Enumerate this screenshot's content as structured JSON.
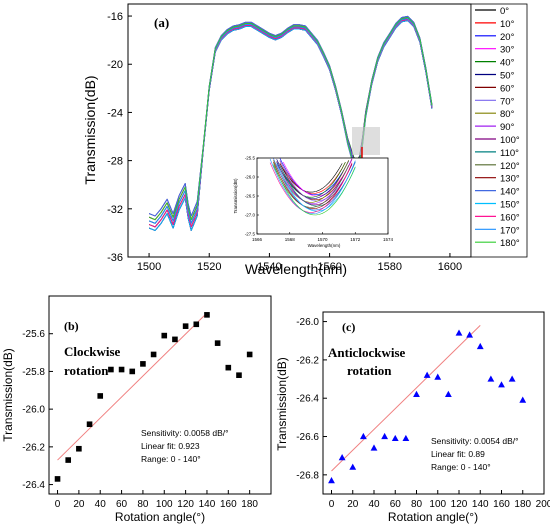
{
  "chart_data": [
    {
      "panel": "(a)",
      "type": "line",
      "xlabel": "Wavelength(nm)",
      "ylabel": "Transmission(dB)",
      "xlim": [
        1493,
        1607
      ],
      "ylim": [
        -36,
        -15
      ],
      "xticks": [
        "1500",
        "1520",
        "1540",
        "1560",
        "1580",
        "1600"
      ],
      "yticks": [
        "-36",
        "-32",
        "-28",
        "-24",
        "-20",
        "-16"
      ],
      "legend": [
        "0°",
        "10°",
        "20°",
        "30°",
        "40°",
        "50°",
        "60°",
        "70°",
        "80°",
        "90°",
        "100°",
        "110°",
        "120°",
        "130°",
        "140°",
        "150°",
        "160°",
        "170°",
        "180°"
      ],
      "legend_position": "right",
      "series_colors": [
        "#000000",
        "#ff0000",
        "#0000ff",
        "#ff00ff",
        "#008000",
        "#000080",
        "#800000",
        "#7b68ee",
        "#808000",
        "#a020f0",
        "#800080",
        "#008080",
        "#556b2f",
        "#8b0000",
        "#4169e1",
        "#00bfff",
        "#ff1493",
        "#1e90ff",
        "#32cd32"
      ],
      "spectrum": {
        "x": [
          1500,
          1502,
          1504,
          1506,
          1508,
          1510,
          1512,
          1513,
          1514,
          1516,
          1518,
          1520,
          1522,
          1524,
          1526,
          1528,
          1530,
          1532,
          1534,
          1536,
          1538,
          1540,
          1542,
          1544,
          1546,
          1548,
          1550,
          1552,
          1554,
          1556,
          1558,
          1560,
          1562,
          1564,
          1566,
          1568,
          1569,
          1570,
          1571,
          1572,
          1574,
          1576,
          1578,
          1580,
          1582,
          1584,
          1586,
          1588,
          1590,
          1592,
          1594
        ],
        "y": [
          -33.0,
          -33.2,
          -32.6,
          -31.8,
          -33.0,
          -31.5,
          -30.5,
          -32.2,
          -33.2,
          -32.0,
          -27.0,
          -22.0,
          -18.8,
          -17.8,
          -17.3,
          -17.0,
          -16.9,
          -16.7,
          -16.7,
          -17.0,
          -17.3,
          -17.6,
          -17.8,
          -17.6,
          -17.2,
          -16.9,
          -16.9,
          -17.0,
          -17.6,
          -18.2,
          -19.2,
          -20.3,
          -22.0,
          -24.0,
          -26.2,
          -27.7,
          -28.0,
          -27.6,
          -26.0,
          -24.0,
          -21.5,
          -19.6,
          -18.4,
          -17.6,
          -16.8,
          -16.3,
          -16.2,
          -16.7,
          -18.0,
          -20.5,
          -23.5
        ]
      },
      "inset": {
        "xlabel": "Wavelength(nm)",
        "ylabel": "Transmission(dB)",
        "xlim": [
          1566,
          1574
        ],
        "ylim": [
          -27.5,
          -25.5
        ],
        "xticks": [
          "1566",
          "1568",
          "1570",
          "1572",
          "1574"
        ],
        "yticks": [
          "-27.5",
          "-27.0",
          "-26.5",
          "-26.0",
          "-25.5"
        ]
      }
    },
    {
      "panel": "(b)",
      "type": "scatter",
      "annotation": "Clockwise rotation",
      "xlabel": "Rotation angle(°)",
      "ylabel": "Transmission(dB)",
      "xlim": [
        -8,
        200
      ],
      "ylim": [
        -26.45,
        -25.4
      ],
      "xticks": [
        "0",
        "20",
        "40",
        "60",
        "80",
        "100",
        "120",
        "140",
        "160",
        "180"
      ],
      "yticks": [
        "-26.4",
        "-26.2",
        "-26.0",
        "-25.8",
        "-25.6"
      ],
      "x": [
        0,
        10,
        20,
        30,
        40,
        50,
        60,
        70,
        80,
        90,
        100,
        110,
        120,
        130,
        140,
        150,
        160,
        170,
        180
      ],
      "y": [
        -26.37,
        -26.27,
        -26.21,
        -26.08,
        -25.93,
        -25.79,
        -25.79,
        -25.8,
        -25.76,
        -25.71,
        -25.61,
        -25.63,
        -25.56,
        -25.55,
        -25.5,
        -25.65,
        -25.78,
        -25.82,
        -25.71
      ],
      "fit_x": [
        0,
        140
      ],
      "fit_y": [
        -26.27,
        -25.49
      ],
      "stats": [
        "Sensitivity: 0.0058 dB/°",
        "Linear fit: 0.923",
        "Range: 0 - 140°"
      ]
    },
    {
      "panel": "(c)",
      "type": "scatter",
      "annotation": "Anticlockwise rotation",
      "xlabel": "Rotation angle(°)",
      "ylabel": "Transmission(dB)",
      "xlim": [
        -8,
        200
      ],
      "ylim": [
        -26.9,
        -25.95
      ],
      "xticks": [
        "0",
        "20",
        "40",
        "60",
        "80",
        "100",
        "120",
        "140",
        "160",
        "180",
        "200"
      ],
      "yticks": [
        "-26.8",
        "-26.6",
        "-26.4",
        "-26.2",
        "-26.0"
      ],
      "x": [
        0,
        10,
        20,
        30,
        40,
        50,
        60,
        70,
        80,
        90,
        100,
        110,
        120,
        130,
        140,
        150,
        160,
        170,
        180
      ],
      "y": [
        -26.83,
        -26.71,
        -26.76,
        -26.6,
        -26.66,
        -26.6,
        -26.61,
        -26.61,
        -26.38,
        -26.28,
        -26.29,
        -26.38,
        -26.06,
        -26.07,
        -26.13,
        -26.3,
        -26.33,
        -26.3,
        -26.41
      ],
      "fit_x": [
        0,
        140
      ],
      "fit_y": [
        -26.78,
        -26.02
      ],
      "stats": [
        "Sensitivity: 0.0054 dB/°",
        "Linear fit: 0.89",
        "Range: 0 - 140°"
      ]
    }
  ]
}
